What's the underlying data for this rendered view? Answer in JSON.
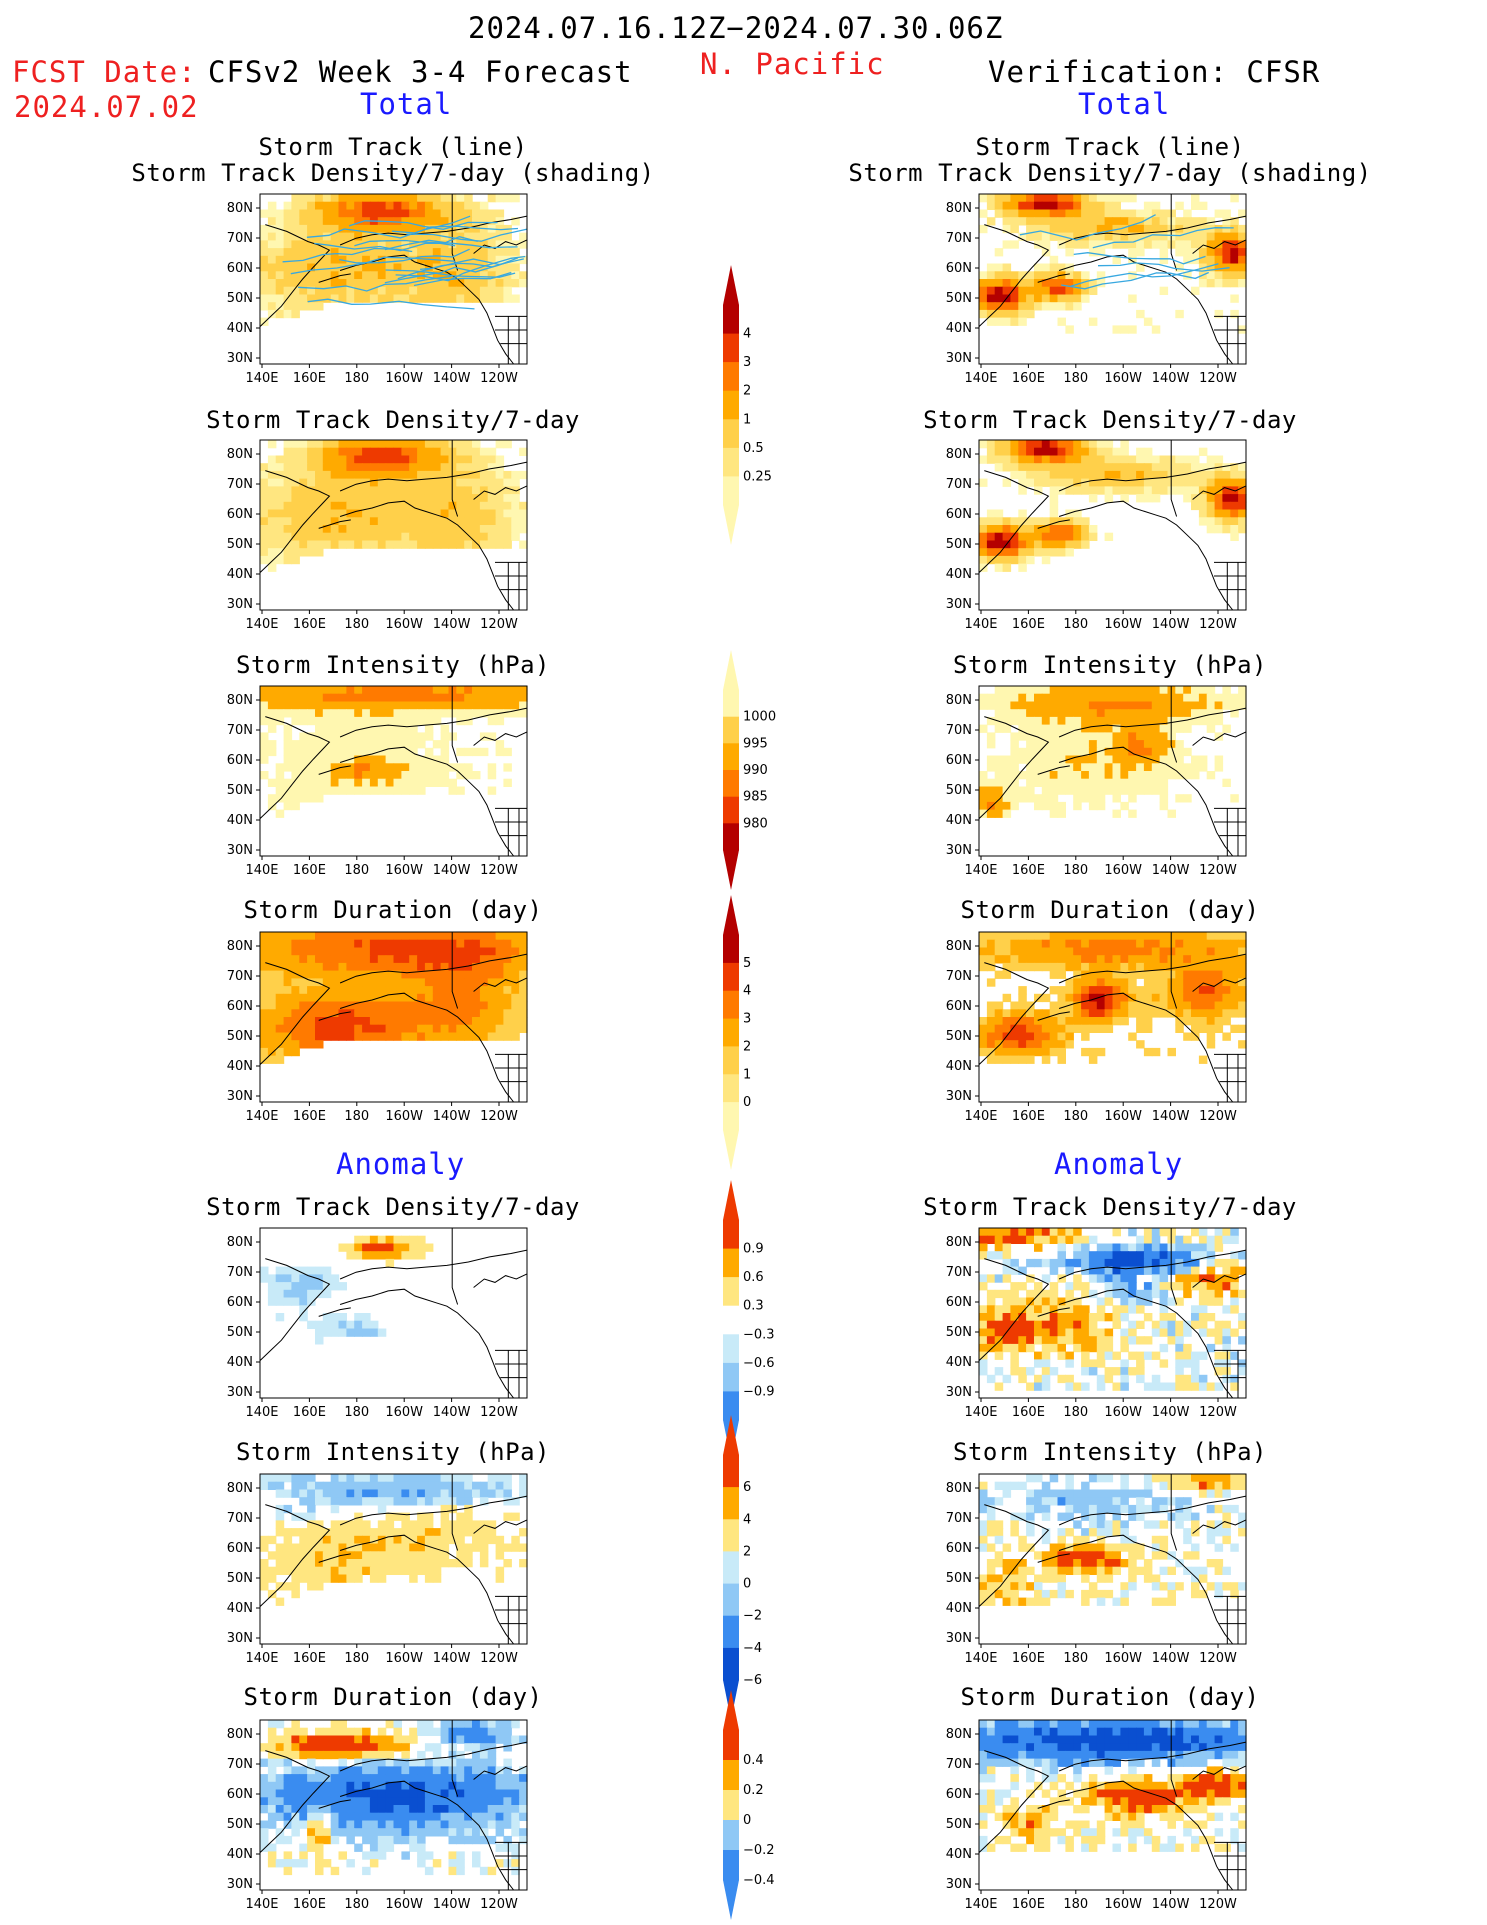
{
  "header": {
    "period": "2024.07.16.12Z−2024.07.30.06Z",
    "fcst_label": "FCST Date:",
    "fcst_date": "2024.07.02",
    "model_title": "CFSv2 Week 3-4 Forecast",
    "region": "N. Pacific",
    "verification": "Verification: CFSR",
    "left_total": "Total",
    "right_total": "Total",
    "left_anomaly": "Anomaly",
    "right_anomaly": "Anomaly"
  },
  "panel_titles": {
    "track_line": "Storm Track (line)",
    "track_shading": "Storm Track Density/7-day (shading)",
    "density": "Storm Track Density/7-day",
    "intensity": "Storm Intensity (hPa)",
    "duration": "Storm Duration (day)"
  },
  "axes": {
    "lon_ticks": [
      "140E",
      "160E",
      "180",
      "160W",
      "140W",
      "120W"
    ],
    "lat_ticks": [
      "80N",
      "70N",
      "60N",
      "50N",
      "40N",
      "30N"
    ]
  },
  "colors": {
    "seq_yellow_red": [
      "#fff7b0",
      "#ffe680",
      "#ffd04a",
      "#ffaa00",
      "#ff7a00",
      "#ee3a00",
      "#b40000"
    ],
    "div_blue_red": [
      "#0a4fd0",
      "#3a8cf0",
      "#8fc8f5",
      "#c8eaf8",
      "#ffe680",
      "#ffaa00",
      "#ee3a00"
    ],
    "track_line": "#38a8e0"
  },
  "chart_data": [
    {
      "type": "heatmap",
      "side": "forecast",
      "title": "Storm Track Density/7-day (shading)",
      "overlay": "Storm Track (line)",
      "colorbar": {
        "labels": [
          "0.25",
          "0.5",
          "1",
          "2",
          "3",
          "4"
        ]
      }
    },
    {
      "type": "heatmap",
      "side": "forecast",
      "title": "Storm Track Density/7-day",
      "colorbar": {
        "labels": [
          "0.25",
          "0.5",
          "1",
          "2",
          "3",
          "4"
        ]
      }
    },
    {
      "type": "heatmap",
      "side": "forecast",
      "title": "Storm Intensity (hPa)",
      "colorbar": {
        "labels": [
          "1000",
          "995",
          "990",
          "985",
          "980"
        ]
      }
    },
    {
      "type": "heatmap",
      "side": "forecast",
      "title": "Storm Duration (day)",
      "colorbar": {
        "labels": [
          "0",
          "1",
          "2",
          "3",
          "4",
          "5"
        ]
      }
    },
    {
      "type": "heatmap",
      "side": "forecast",
      "title": "Storm Track Density/7-day",
      "anomaly": true,
      "colorbar": {
        "labels": [
          "−0.9",
          "−0.6",
          "−0.3",
          "0.3",
          "0.6",
          "0.9"
        ]
      }
    },
    {
      "type": "heatmap",
      "side": "forecast",
      "title": "Storm Intensity (hPa)",
      "anomaly": true,
      "colorbar": {
        "labels": [
          "−6",
          "−4",
          "−2",
          "0",
          "2",
          "4",
          "6"
        ]
      }
    },
    {
      "type": "heatmap",
      "side": "forecast",
      "title": "Storm Duration (day)",
      "anomaly": true,
      "colorbar": {
        "labels": [
          "−0.4",
          "−0.2",
          "0",
          "0.2",
          "0.4"
        ]
      }
    }
  ]
}
